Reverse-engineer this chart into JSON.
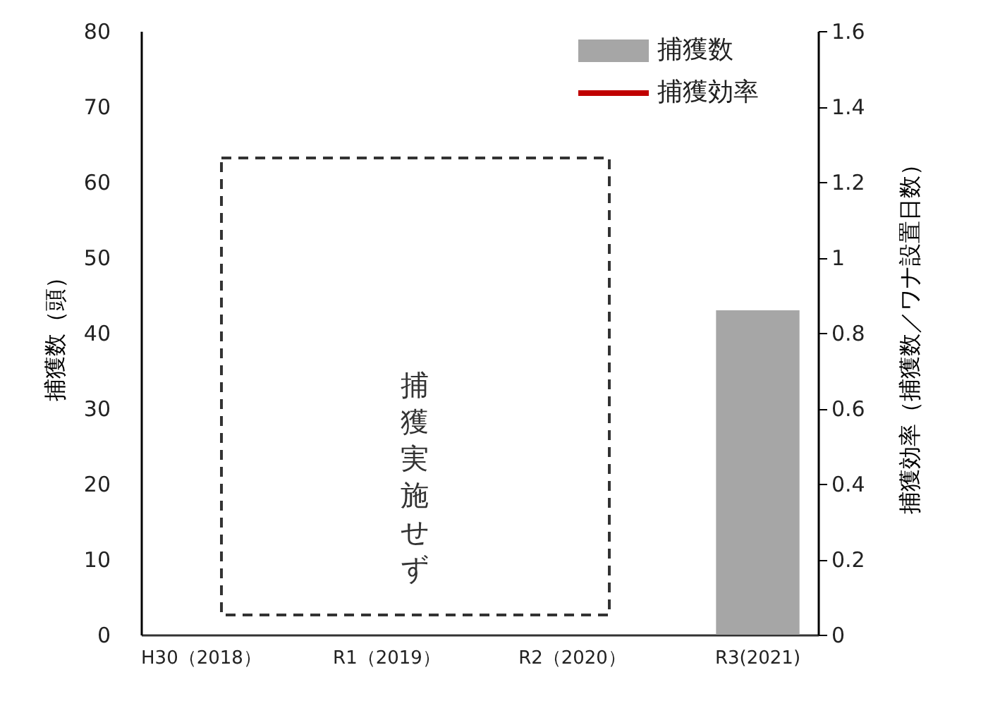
{
  "chart_data": {
    "type": "bar",
    "categories": [
      "H30（2018）",
      "R1（2019）",
      "R2（2020）",
      "R3(2021)"
    ],
    "ylabel": "捕獲数（頭）",
    "y2label": "捕獲効率（捕獲数／ワナ設置日数）",
    "series": [
      {
        "name": "捕獲数",
        "color": "#a6a6a6",
        "values": [
          null,
          null,
          null,
          43
        ]
      },
      {
        "name": "捕獲効率",
        "type": "line",
        "axis": "y2",
        "color": "#c00000",
        "values": [
          null,
          null,
          null,
          null
        ]
      }
    ],
    "ylim": [
      0,
      80
    ],
    "yticks": [
      0,
      10,
      20,
      30,
      40,
      50,
      60,
      70,
      80
    ],
    "y2lim": [
      0,
      1.6
    ],
    "y2ticks": [
      0,
      0.2,
      0.4,
      0.6,
      0.8,
      1,
      1.2,
      1.4,
      1.6
    ],
    "annotations": [
      "捕獲実施せず"
    ],
    "grid": false,
    "legend": "top right"
  }
}
